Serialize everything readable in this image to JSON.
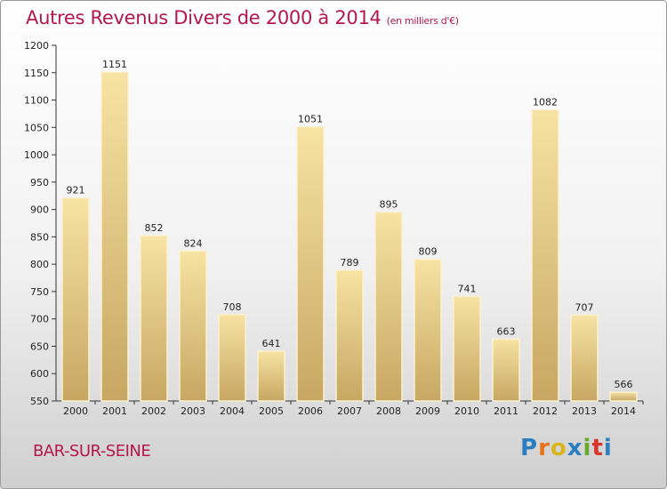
{
  "title": "Autres Revenus Divers de 2000 à 2014",
  "subtitle": "(en milliers d'€)",
  "location": "BAR-SUR-SEINE",
  "logo": {
    "letters": [
      "P",
      "r",
      "o",
      "x",
      "i",
      "t",
      "i"
    ],
    "colors": [
      "#2b7fc1",
      "#e8731c",
      "#d8b51a",
      "#2b7fc1",
      "#6aa82f",
      "#d8362a",
      "#2b7fc1"
    ]
  },
  "colors": {
    "accent": "#b5174d",
    "bar_light": "#f6df9c",
    "bar_dark": "#c9a963"
  },
  "chart_data": {
    "type": "bar",
    "categories": [
      "2000",
      "2001",
      "2002",
      "2003",
      "2004",
      "2005",
      "2006",
      "2007",
      "2008",
      "2009",
      "2010",
      "2011",
      "2012",
      "2013",
      "2014"
    ],
    "values": [
      921,
      1151,
      852,
      824,
      708,
      641,
      1051,
      789,
      895,
      809,
      741,
      663,
      1082,
      707,
      566
    ],
    "ylim": [
      550,
      1200
    ],
    "yticks": [
      550,
      600,
      650,
      700,
      750,
      800,
      850,
      900,
      950,
      1000,
      1050,
      1100,
      1150,
      1200
    ],
    "grid": false,
    "data_labels": true
  }
}
